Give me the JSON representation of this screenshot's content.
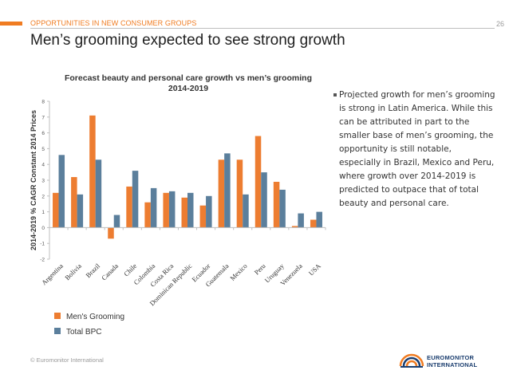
{
  "header": {
    "section_label": "OPPORTUNITIES IN NEW CONSUMER GROUPS",
    "page_number": "26",
    "title": "Men’s grooming expected to see strong growth",
    "accent_color": "#f07c22"
  },
  "chart_data": {
    "type": "bar",
    "title_line1": "Forecast beauty and personal care growth vs men’s grooming",
    "title_line2": "2014-2019",
    "ylabel": "2014-2019 % CAGR Constant 2014 Prices",
    "ylim": [
      -2,
      8
    ],
    "yticks": [
      "-2",
      "-1",
      "0",
      "1",
      "2",
      "3",
      "4",
      "5",
      "6",
      "7",
      "8"
    ],
    "grid": false,
    "legend_position": "bottom-left",
    "categories": [
      "Argentina",
      "Bolivia",
      "Brazil",
      "Canada",
      "Chile",
      "Colombia",
      "Costa Rica",
      "Dominican Republic",
      "Ecuador",
      "Guatemala",
      "Mexico",
      "Peru",
      "Uruguay",
      "Venezuela",
      "USA"
    ],
    "series": [
      {
        "name": "Men's Grooming",
        "color": "#ed7d31",
        "values": [
          2.2,
          3.2,
          7.1,
          -0.7,
          2.6,
          1.6,
          2.2,
          1.9,
          1.4,
          4.3,
          4.3,
          5.8,
          2.9,
          0.1,
          0.5
        ]
      },
      {
        "name": "Total BPC",
        "color": "#5b7f9c",
        "values": [
          4.6,
          2.1,
          4.3,
          0.8,
          3.6,
          2.5,
          2.3,
          2.2,
          2.0,
          4.7,
          2.1,
          3.5,
          2.4,
          0.9,
          1.0
        ]
      }
    ]
  },
  "bullet": {
    "text": "Projected growth for men’s grooming is strong in Latin America. While this can be attributed in part to the smaller base of men’s grooming, the opportunity is still notable, especially in Brazil, Mexico and Peru, where growth over 2014-2019 is predicted to outpace that of total beauty and personal care."
  },
  "footer": {
    "copyright": "© Euromonitor International",
    "logo_line1": "EUROMONITOR",
    "logo_line2": "INTERNATIONAL"
  }
}
